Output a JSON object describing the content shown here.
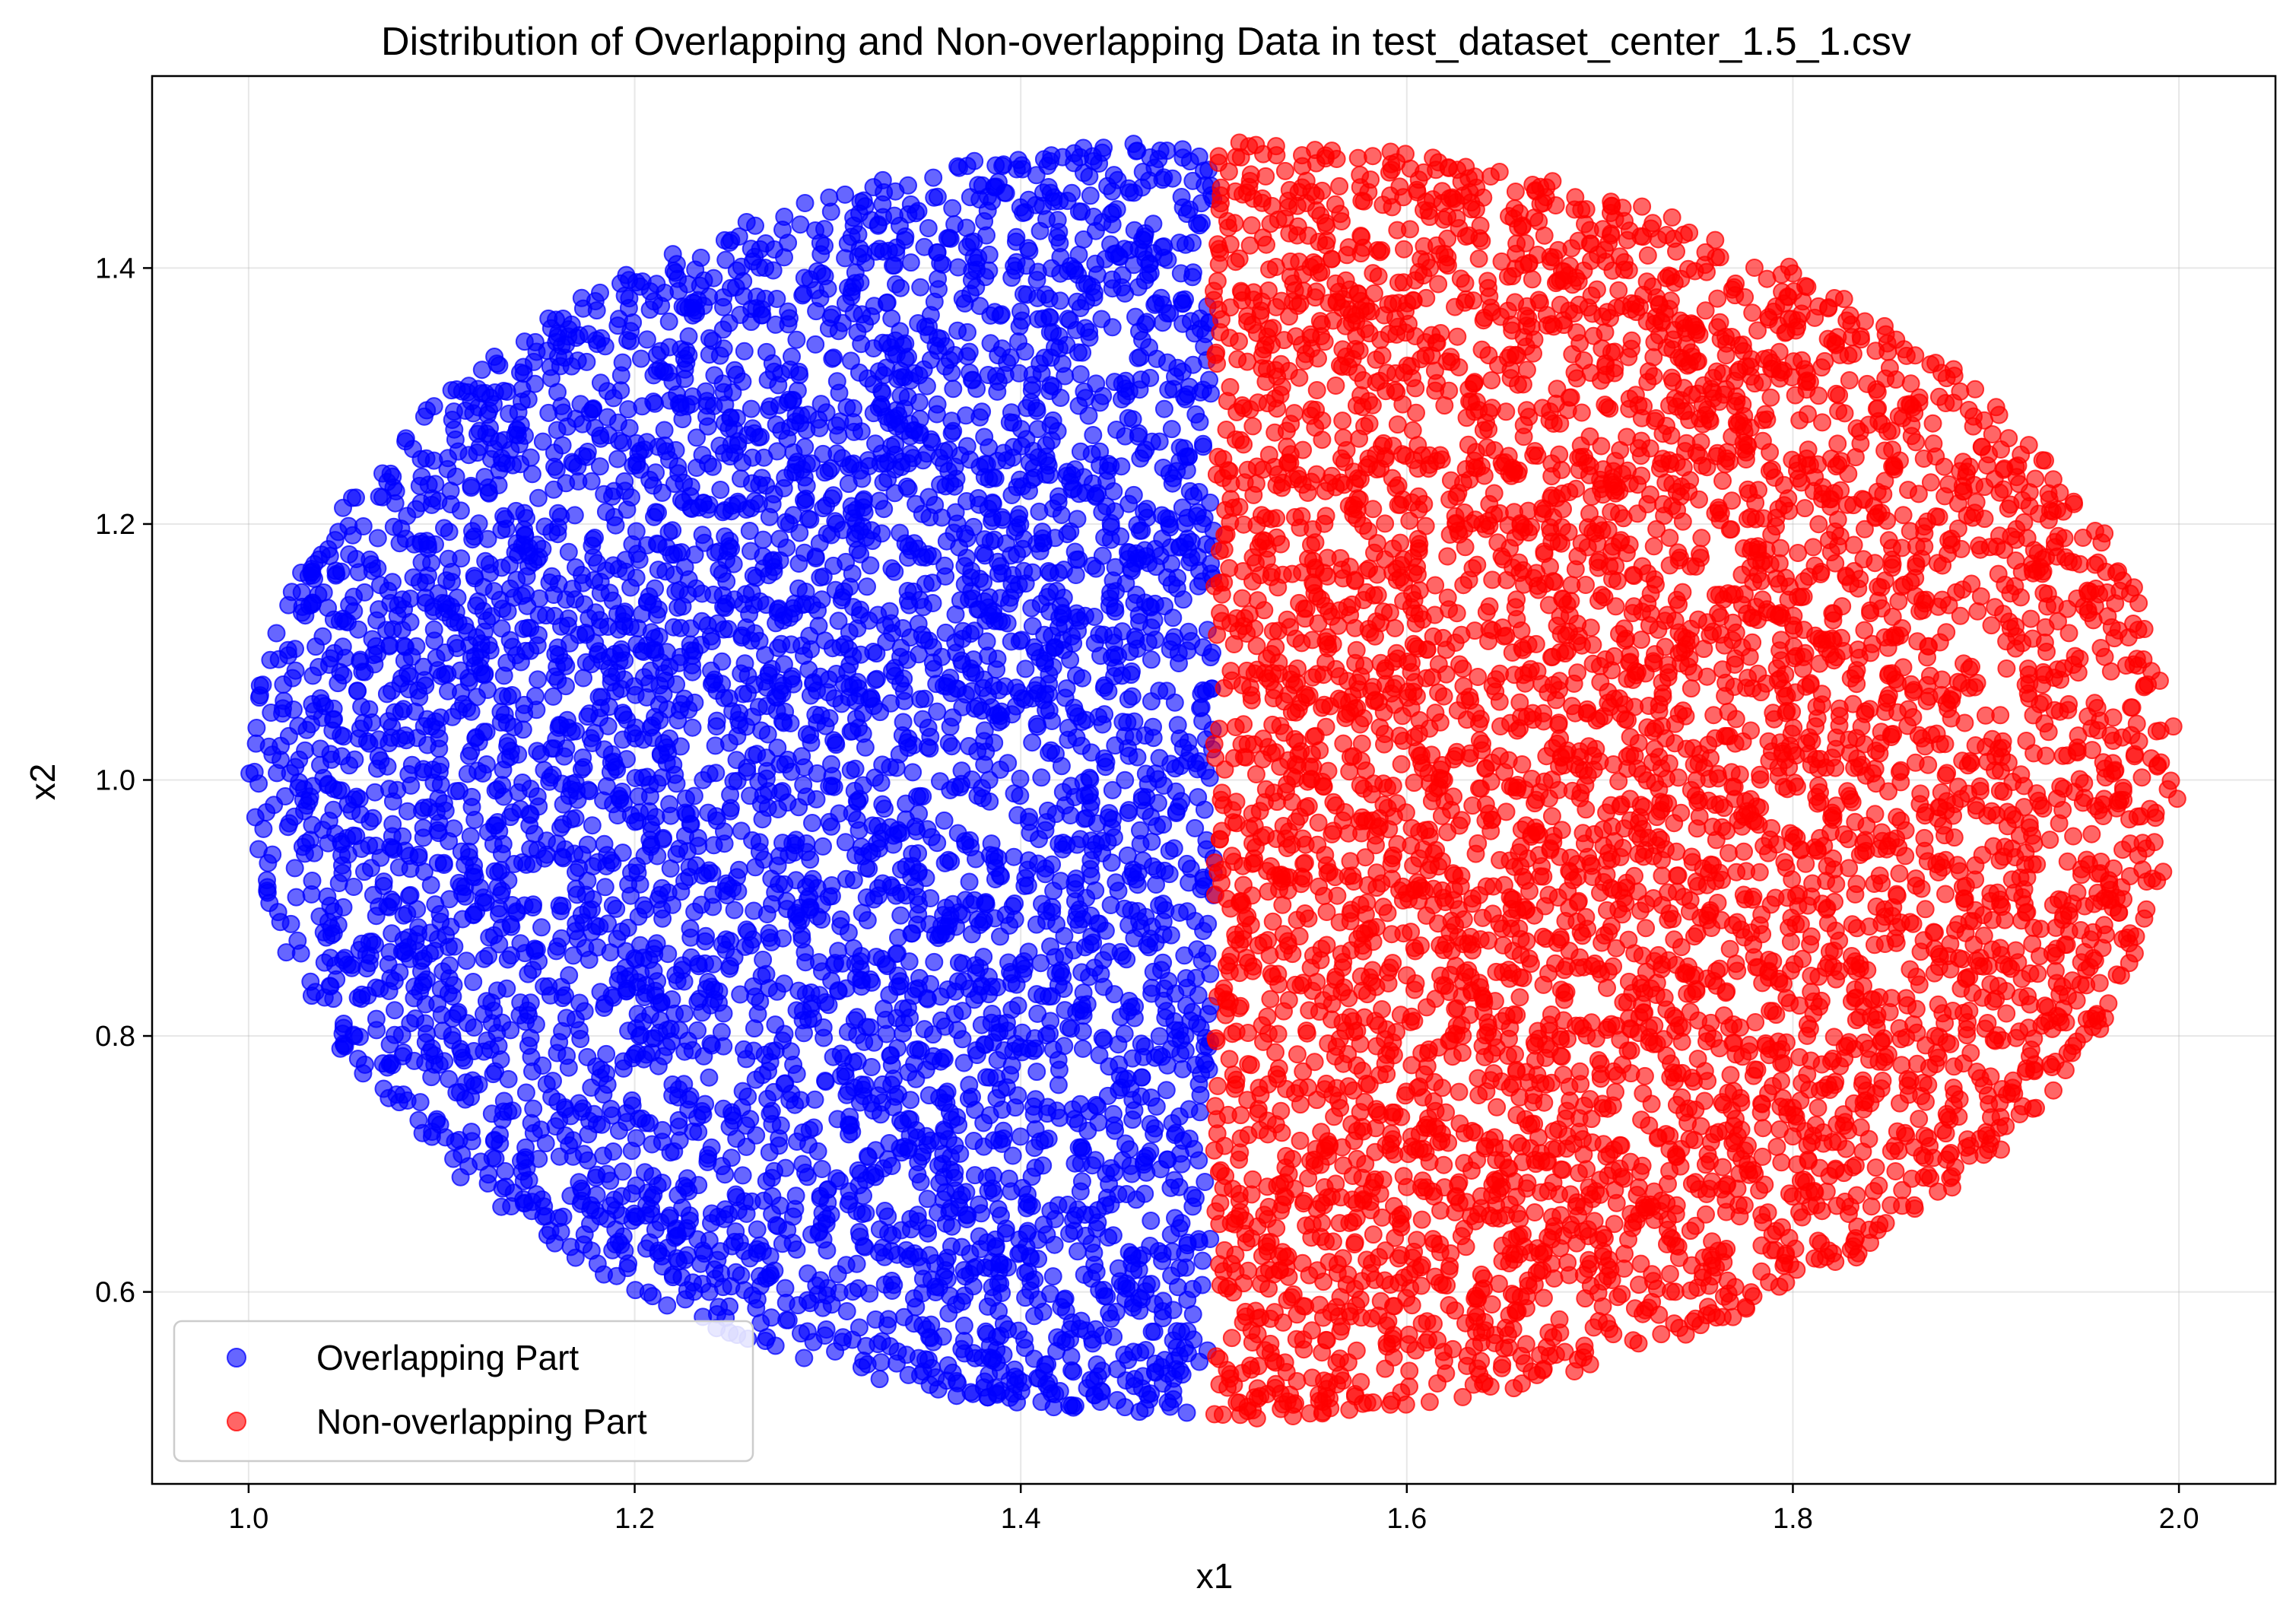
{
  "chart_data": {
    "type": "scatter",
    "title": "Distribution of Overlapping and Non-overlapping Data in test_dataset_center_1.5_1.csv",
    "xlabel": "x1",
    "ylabel": "x2",
    "xlim": [
      0.95,
      2.05
    ],
    "ylim": [
      0.45,
      1.55
    ],
    "xticks": [
      1.0,
      1.2,
      1.4,
      1.6,
      1.8,
      2.0
    ],
    "yticks": [
      0.6,
      0.8,
      1.0,
      1.2,
      1.4
    ],
    "xtick_labels": [
      "1.0",
      "1.2",
      "1.4",
      "1.6",
      "1.8",
      "2.0"
    ],
    "ytick_labels": [
      "0.6",
      "0.8",
      "1.0",
      "1.2",
      "1.4"
    ],
    "grid": true,
    "legend_position": "lower-left",
    "region": {
      "shape": "ellipse",
      "center": [
        1.5,
        1.0
      ],
      "x_semi_axis": 0.5,
      "y_semi_axis": 0.5,
      "split_x": 1.5,
      "approx_points_per_series": 5000
    },
    "series": [
      {
        "name": "Overlapping Part",
        "color": "#0000ff",
        "alpha": 0.6,
        "x_range": [
          1.0,
          1.5
        ],
        "y_range": [
          0.5,
          1.5
        ]
      },
      {
        "name": "Non-overlapping Part",
        "color": "#ff0000",
        "alpha": 0.6,
        "x_range": [
          1.5,
          2.0
        ],
        "y_range": [
          0.5,
          1.5
        ]
      }
    ]
  }
}
